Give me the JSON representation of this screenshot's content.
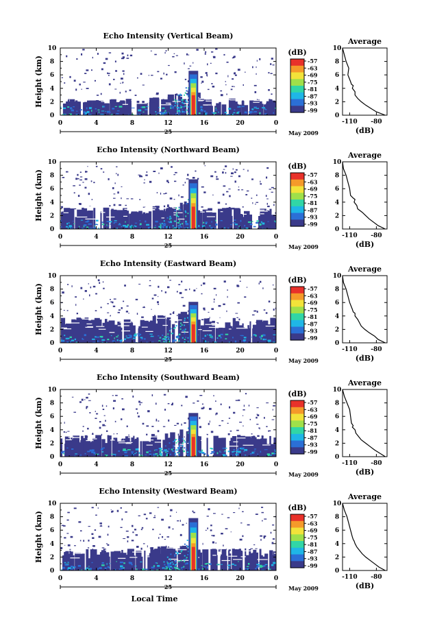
{
  "figure": {
    "month_label": "May 2009",
    "date_label": "25",
    "x_axis_label": "Local Time",
    "y_axis_label": "Height (km)",
    "colorbar_unit": "(dB)",
    "colorbar_ticks": [
      "-57",
      "-63",
      "-69",
      "-75",
      "-81",
      "-87",
      "-93",
      "-99"
    ],
    "avg_title": "Average",
    "avg_xlabel": "(dB)",
    "avg_xticks": [
      "-110",
      "-80"
    ],
    "time_ticks": [
      "0",
      "4",
      "8",
      "12",
      "16",
      "20",
      "0"
    ],
    "height_ticks": [
      "0",
      "2",
      "4",
      "6",
      "8",
      "10"
    ],
    "avg_height_ticks": [
      "0",
      "2",
      "4",
      "6",
      "8",
      "10"
    ]
  },
  "colors": {
    "scale": [
      "#3a3a8a",
      "#2b6fd6",
      "#1fb6e6",
      "#31d6a6",
      "#9fe04a",
      "#f2e33a",
      "#f59a2a",
      "#e8312a"
    ]
  },
  "chart_data": [
    {
      "type": "heatmap",
      "title": "Echo Intensity (Vertical Beam)",
      "xlabel": "",
      "ylabel": "Height (km)",
      "xlim": [
        0,
        24
      ],
      "ylim": [
        0,
        10
      ],
      "zlim": [
        -99,
        -57
      ],
      "spike": {
        "time": 14.8,
        "height": 6.6
      },
      "layer_top_km": 2.5,
      "noise_top_km": 10
    },
    {
      "type": "heatmap",
      "title": "Echo Intensity (Northward Beam)",
      "xlabel": "",
      "ylabel": "Height (km)",
      "xlim": [
        0,
        24
      ],
      "ylim": [
        0,
        10
      ],
      "zlim": [
        -99,
        -57
      ],
      "spike": {
        "time": 14.8,
        "height": 7.4
      },
      "layer_top_km": 3.2,
      "noise_top_km": 9.5
    },
    {
      "type": "heatmap",
      "title": "Echo Intensity (Eastward Beam)",
      "xlabel": "",
      "ylabel": "Height (km)",
      "xlim": [
        0,
        24
      ],
      "ylim": [
        0,
        10
      ],
      "zlim": [
        -99,
        -57
      ],
      "spike": {
        "time": 14.8,
        "height": 6.1
      },
      "layer_top_km": 3.8,
      "noise_top_km": 9.5
    },
    {
      "type": "heatmap",
      "title": "Echo Intensity (Southward Beam)",
      "xlabel": "",
      "ylabel": "Height (km)",
      "xlim": [
        0,
        24
      ],
      "ylim": [
        0,
        10
      ],
      "zlim": [
        -99,
        -57
      ],
      "spike": {
        "time": 14.8,
        "height": 6.5
      },
      "layer_top_km": 3.3,
      "noise_top_km": 9.5
    },
    {
      "type": "heatmap",
      "title": "Echo Intensity (Westward Beam)",
      "xlabel": "Local Time",
      "ylabel": "Height (km)",
      "xlim": [
        0,
        24
      ],
      "ylim": [
        0,
        10
      ],
      "zlim": [
        -99,
        -57
      ],
      "spike": {
        "time": 14.8,
        "height": 7.8
      },
      "layer_top_km": 3.3,
      "noise_top_km": 9.5
    }
  ],
  "average_profiles": [
    {
      "title": "Average",
      "xlim": [
        -118,
        -68
      ],
      "xlabel": "(dB)",
      "ylabel": "",
      "x": [
        -118,
        -116,
        -114,
        -111,
        -112,
        -109,
        -108,
        -106,
        -107,
        -104,
        -104,
        -101,
        -97,
        -92,
        -86,
        -80,
        -70
      ],
      "y": [
        10,
        9,
        8,
        7,
        6,
        5,
        4.6,
        4.4,
        4,
        3.5,
        3,
        2.5,
        2,
        1.5,
        1,
        0.5,
        0
      ]
    },
    {
      "title": "Average",
      "xlim": [
        -118,
        -68
      ],
      "xlabel": "(dB)",
      "ylabel": "",
      "x": [
        -118,
        -117,
        -114,
        -112,
        -110,
        -109,
        -106,
        -104,
        -105,
        -102,
        -101,
        -96,
        -92,
        -88,
        -83,
        -78,
        -70
      ],
      "y": [
        10,
        9,
        8,
        7,
        6,
        5,
        4.6,
        4.4,
        4,
        3.5,
        3,
        2.5,
        2,
        1.5,
        1,
        0.5,
        0
      ]
    },
    {
      "title": "Average",
      "xlim": [
        -118,
        -68
      ],
      "xlabel": "(dB)",
      "ylabel": "",
      "x": [
        -118,
        -117,
        -114,
        -112,
        -110,
        -107,
        -106,
        -104,
        -104,
        -101,
        -99,
        -97,
        -93,
        -88,
        -82,
        -78,
        -70
      ],
      "y": [
        10,
        9,
        8,
        7,
        6,
        5,
        4.6,
        4.4,
        4,
        3.5,
        3,
        2.5,
        2,
        1.5,
        1,
        0.5,
        0
      ]
    },
    {
      "title": "Average",
      "xlim": [
        -118,
        -68
      ],
      "xlabel": "(dB)",
      "ylabel": "",
      "x": [
        -118,
        -116,
        -113,
        -110,
        -109,
        -108,
        -106,
        -107,
        -104,
        -103,
        -100,
        -97,
        -92,
        -87,
        -82,
        -76,
        -70
      ],
      "y": [
        10,
        9,
        8,
        7,
        6,
        5,
        4.6,
        4.4,
        4,
        3.5,
        3,
        2.5,
        2,
        1.5,
        1,
        0.5,
        0
      ]
    },
    {
      "title": "Average",
      "xlim": [
        -118,
        -68
      ],
      "xlabel": "(dB)",
      "ylabel": "",
      "x": [
        -118,
        -116,
        -113,
        -111,
        -109,
        -107,
        -106,
        -105,
        -104,
        -102,
        -99,
        -96,
        -92,
        -87,
        -82,
        -77,
        -70
      ],
      "y": [
        10,
        9,
        8,
        7,
        6,
        5,
        4.6,
        4.4,
        4,
        3.5,
        3,
        2.5,
        2,
        1.5,
        1,
        0.5,
        0
      ]
    }
  ]
}
